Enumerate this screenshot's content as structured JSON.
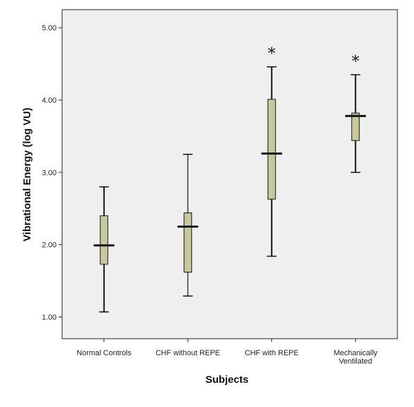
{
  "chart_data": {
    "type": "boxplot",
    "xlabel": "Subjects",
    "ylabel": "Vibrational Energy (log VU)",
    "ylim": [
      0.7,
      5.25
    ],
    "yticks": [
      "1.00",
      "2.00",
      "3.00",
      "4.00",
      "5.00"
    ],
    "ytick_values": [
      1,
      2,
      3,
      4,
      5
    ],
    "grid": false,
    "categories": [
      {
        "label": [
          "Normal Controls"
        ],
        "min": 1.07,
        "q1": 1.73,
        "median": 1.99,
        "q3": 2.4,
        "max": 2.8,
        "annotation": ""
      },
      {
        "label": [
          "CHF without REPE"
        ],
        "min": 1.29,
        "q1": 1.62,
        "median": 2.25,
        "q3": 2.44,
        "max": 3.25,
        "annotation": ""
      },
      {
        "label": [
          "CHF with REPE"
        ],
        "min": 1.84,
        "q1": 2.63,
        "median": 3.26,
        "q3": 4.01,
        "max": 4.46,
        "annotation": "*"
      },
      {
        "label": [
          "Mechanically",
          "Ventilated"
        ],
        "min": 3.0,
        "q1": 3.44,
        "median": 3.78,
        "q3": 3.82,
        "max": 4.35,
        "annotation": "*"
      }
    ],
    "colors": {
      "box_fill": "#c8c99a",
      "box_stroke": "#111111",
      "plot_bg": "#efefef",
      "axis": "#222222"
    }
  }
}
